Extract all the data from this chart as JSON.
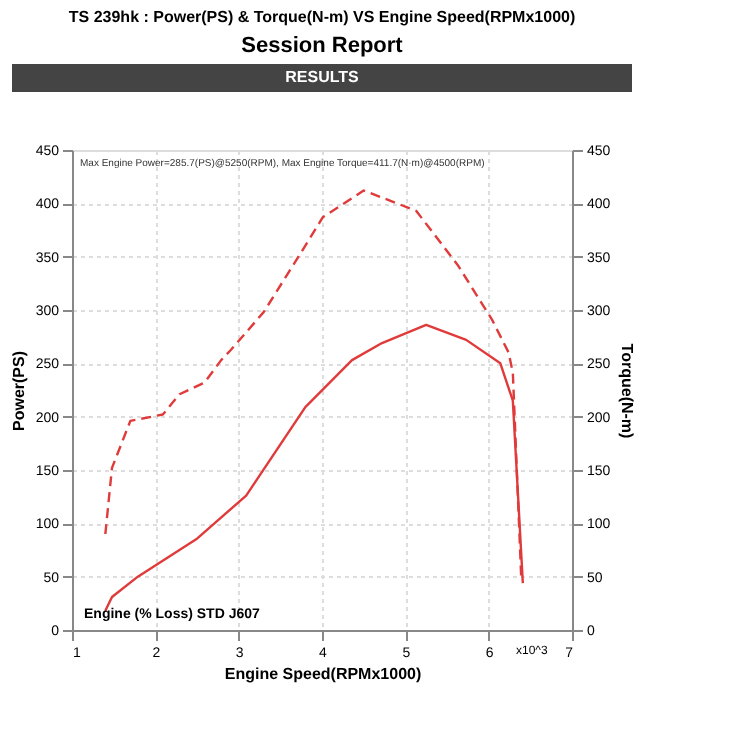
{
  "chart_data": {
    "type": "line",
    "title": "TS 239hk : Power(PS) & Torque(N-m) VS Engine Speed(RPMx1000)",
    "xlabel": "Engine Speed(RPMx1000)",
    "ylabel": "Power(PS)",
    "y2label": "Torque(N-m)",
    "annotations": [
      "Session Report",
      "RESULTS",
      "Max Engine Power=285.7(PS)@5250(RPM), Max Engine Torque=411.7(N·m)@4500(RPM)",
      "Engine (% Loss) STD J607",
      "x10^3"
    ],
    "xlim": [
      1,
      7
    ],
    "xticks": [
      1,
      2,
      3,
      4,
      5,
      6,
      7
    ],
    "ylim": [
      0,
      450
    ],
    "yticks": [
      0,
      50,
      100,
      150,
      200,
      250,
      300,
      350,
      400,
      450
    ],
    "y2lim": [
      0,
      450
    ],
    "y2ticks": [
      0,
      50,
      100,
      150,
      200,
      250,
      300,
      350,
      400,
      450
    ],
    "grid": true,
    "marker": "none",
    "series": [
      {
        "color": "#e03a3a",
        "line_style": "solid",
        "x": [
          1.4,
          1.48,
          1.79,
          2.49,
          3.09,
          3.8,
          4.36,
          4.72,
          5.25,
          5.73,
          6.14,
          6.29,
          6.41
        ],
        "values": [
          18,
          31,
          50,
          85,
          126,
          209,
          253,
          269,
          286,
          272,
          250,
          215,
          44
        ]
      },
      {
        "color": "#e03a3a",
        "line_style": "dashed",
        "axis": "y2",
        "x": [
          1.4,
          1.48,
          1.7,
          2.09,
          2.29,
          2.59,
          2.79,
          2.9,
          3.3,
          3.71,
          4.01,
          4.5,
          5.13,
          5.63,
          6.04,
          6.24,
          6.29,
          6.39
        ],
        "values": [
          90,
          152,
          196,
          202,
          221,
          232,
          253,
          262,
          298,
          349,
          387,
          412,
          393,
          342,
          291,
          260,
          241,
          50
        ]
      }
    ]
  }
}
